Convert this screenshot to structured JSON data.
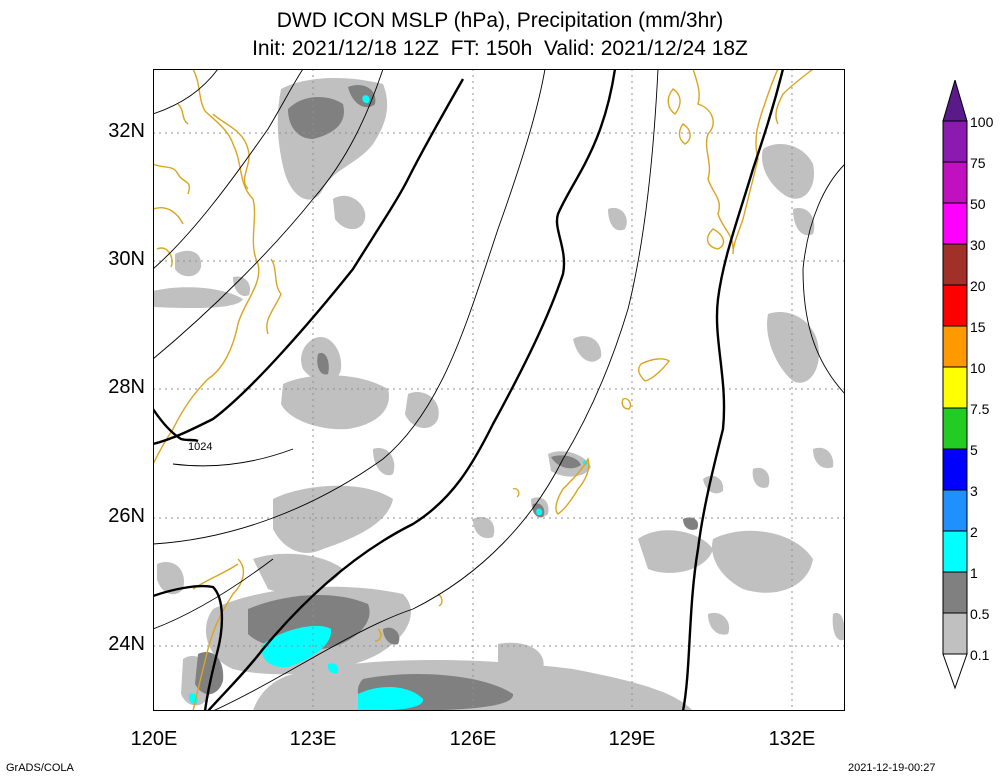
{
  "title": {
    "line1": "DWD ICON MSLP (hPa), Precipitation (mm/3hr)",
    "line2": "Init: 2021/12/18 12Z  FT: 150h  Valid: 2021/12/24 18Z"
  },
  "axes": {
    "lat_labels": [
      "32N",
      "30N",
      "28N",
      "26N",
      "24N"
    ],
    "lon_labels": [
      "120E",
      "123E",
      "126E",
      "129E",
      "132E"
    ],
    "lat_range": [
      23,
      33
    ],
    "lon_range": [
      120,
      133
    ],
    "grid": "dotted"
  },
  "isobar_label": "1024",
  "legend": {
    "thresholds": [
      "100",
      "75",
      "50",
      "30",
      "20",
      "15",
      "10",
      "7.5",
      "5",
      "3",
      "2",
      "1",
      "0.5",
      "0.1"
    ],
    "colors": [
      "#5a1a8a",
      "#8a1ab0",
      "#c010c0",
      "#ff00ff",
      "#a03028",
      "#ff0000",
      "#ff9900",
      "#ffee00",
      "#ffff00",
      "#22cc22",
      "#0000ff",
      "#1e90ff",
      "#00ffff",
      "#808080",
      "#c0c0c0",
      "#ffffff"
    ]
  },
  "footer": {
    "left": "GrADS/COLA",
    "right": "2021-12-19-00:27"
  },
  "colors": {
    "coastline": "#daa520",
    "precip_light": "#c0c0c0",
    "precip_medium": "#808080",
    "precip_heavy": "#00ffff",
    "isobar": "#000000"
  }
}
